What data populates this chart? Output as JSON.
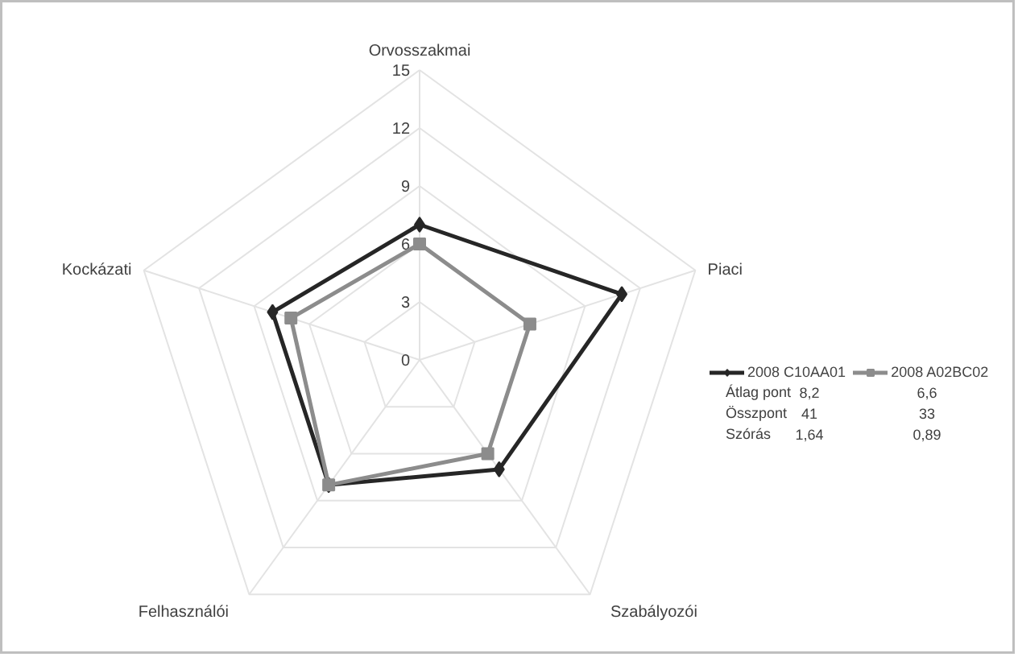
{
  "chart_data": {
    "type": "radar",
    "categories": [
      "Orvosszakmai",
      "Piaci",
      "Szabályozói",
      "Felhasználói",
      "Kockázati"
    ],
    "series": [
      {
        "name": "2008 C10AA01",
        "color": "#262626",
        "marker": "diamond",
        "values": [
          7,
          11,
          7,
          8,
          8
        ]
      },
      {
        "name": "2008 A02BC02",
        "color": "#8c8c8c",
        "marker": "square",
        "values": [
          6,
          6,
          6,
          8,
          7
        ]
      }
    ],
    "ylim": [
      0,
      15
    ],
    "yticks": [
      0,
      3,
      6,
      9,
      12,
      15
    ],
    "grid": true,
    "legend": "right",
    "line_style": "solid",
    "annotations": [
      "Átlag pont",
      "8,2",
      "6,6",
      "Összpont",
      "41",
      "33",
      "Szórás",
      "1,64",
      "0,89"
    ]
  }
}
